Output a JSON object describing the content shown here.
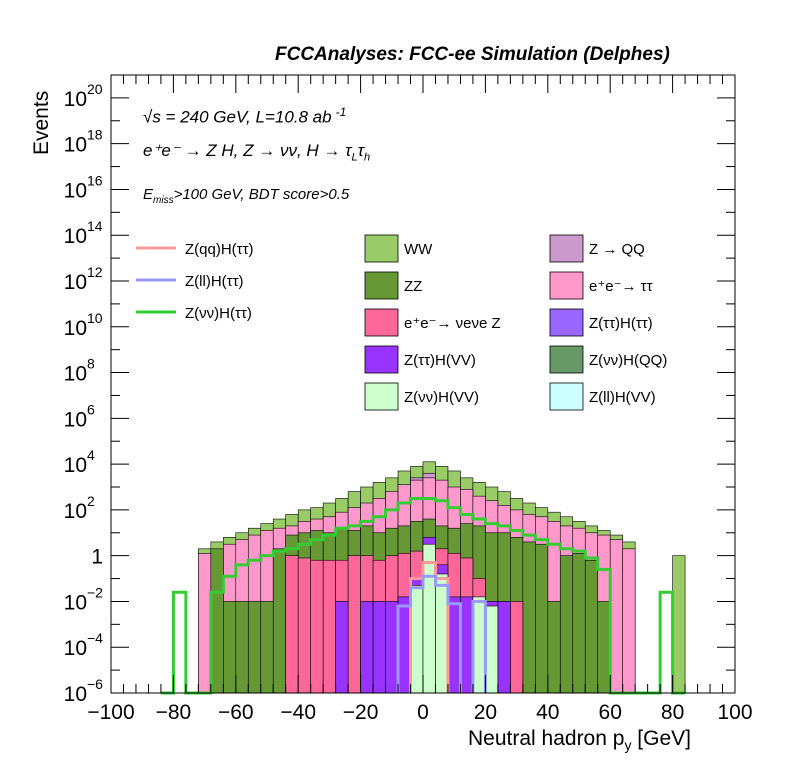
{
  "header": "FCCAnalyses: FCC-ee Simulation (Delphes)",
  "info": {
    "line1": "√s = 240 GeV, L=10.8 ab",
    "line1_exp": "-1",
    "line2": "e⁺e⁻ → Z H, Z → νν, H → τ",
    "line2_sub1": "L",
    "line2_mid": "τ",
    "line2_sub2": "h",
    "line3_pre": "E",
    "line3_sub": "miss",
    "line3_post": ">100 GeV, BDT score>0.5"
  },
  "chart_data": {
    "type": "histogram",
    "ylabel": "Events",
    "xlabel": "Neutral hadron p",
    "xlabel_sub": "y",
    "xlabel_unit": " [GeV]",
    "xlim": [
      -100,
      100
    ],
    "ylog": true,
    "ylim_log10": [
      -6,
      21
    ],
    "xticks": [
      -100,
      -80,
      -60,
      -40,
      -20,
      0,
      20,
      40,
      60,
      80,
      100
    ],
    "xtick_labels": [
      "−100",
      "−80",
      "−60",
      "−40",
      "−20",
      "0",
      "20",
      "40",
      "60",
      "80",
      "100"
    ],
    "yticks_exp": [
      -6,
      -4,
      -2,
      0,
      2,
      4,
      6,
      8,
      10,
      12,
      14,
      16,
      18,
      20
    ],
    "ytick_labels": [
      {
        "base": "10",
        "exp": "−6"
      },
      {
        "base": "10",
        "exp": "−4"
      },
      {
        "base": "10",
        "exp": "−2"
      },
      {
        "base": "1",
        "exp": ""
      },
      {
        "base": "10",
        "exp": "2"
      },
      {
        "base": "10",
        "exp": "4"
      },
      {
        "base": "10",
        "exp": "6"
      },
      {
        "base": "10",
        "exp": "8"
      },
      {
        "base": "10",
        "exp": "10"
      },
      {
        "base": "10",
        "exp": "12"
      },
      {
        "base": "10",
        "exp": "14"
      },
      {
        "base": "10",
        "exp": "16"
      },
      {
        "base": "10",
        "exp": "18"
      },
      {
        "base": "10",
        "exp": "20"
      }
    ],
    "bin_edges_range": [
      -100,
      100
    ],
    "bin_width": 4,
    "stack_note": "cumulative stacked totals, log10(events)",
    "stack_layers": [
      {
        "name": "Z(νν)H(VV)",
        "color": "#ccffcc",
        "bins": [
          {
            "x": -4,
            "v": -1.3
          },
          {
            "x": 0,
            "v": 0.5
          },
          {
            "x": 4,
            "v": -0.8
          },
          {
            "x": 16,
            "v": -1.8
          },
          {
            "x": 20,
            "v": -2.2
          }
        ]
      },
      {
        "name": "Z(ττ)H(VV)",
        "color": "#9933ff",
        "bins": [
          {
            "x": -28,
            "v": -2.0
          },
          {
            "x": -20,
            "v": -2.0
          },
          {
            "x": -16,
            "v": -2.0
          },
          {
            "x": -12,
            "v": -2.0
          },
          {
            "x": -8,
            "v": -1.8
          },
          {
            "x": -4,
            "v": -1.0
          },
          {
            "x": 0,
            "v": 0.8
          },
          {
            "x": 4,
            "v": -0.4
          },
          {
            "x": 8,
            "v": -1.8
          },
          {
            "x": 12,
            "v": -1.8
          },
          {
            "x": 16,
            "v": -1.9
          },
          {
            "x": 20,
            "v": -2.0
          },
          {
            "x": 24,
            "v": -2.0
          }
        ]
      },
      {
        "name": "e⁺e⁻→ νeνe Z",
        "color": "#ff6699",
        "bins": [
          {
            "x": -44,
            "v": 0.0
          },
          {
            "x": -40,
            "v": -0.1
          },
          {
            "x": -36,
            "v": -0.2
          },
          {
            "x": -32,
            "v": -0.2
          },
          {
            "x": -28,
            "v": -0.2
          },
          {
            "x": -24,
            "v": 0.0
          },
          {
            "x": -20,
            "v": 0.0
          },
          {
            "x": -16,
            "v": -0.2
          },
          {
            "x": -12,
            "v": 0.0
          },
          {
            "x": -8,
            "v": 0.1
          },
          {
            "x": -4,
            "v": 0.2
          },
          {
            "x": 0,
            "v": 0.6
          },
          {
            "x": 4,
            "v": 0.3
          },
          {
            "x": 8,
            "v": 0.1
          },
          {
            "x": 12,
            "v": -0.1
          },
          {
            "x": 16,
            "v": -1.0
          },
          {
            "x": 20,
            "v": -2.0
          },
          {
            "x": 24,
            "v": -2.0
          },
          {
            "x": 28,
            "v": -2.0
          }
        ]
      },
      {
        "name": "ZZ",
        "color": "#669933",
        "bins": [
          {
            "x": -72,
            "v": -6
          },
          {
            "x": -68,
            "v": 0.3
          },
          {
            "x": -64,
            "v": -2.0
          },
          {
            "x": -60,
            "v": -2.0
          },
          {
            "x": -56,
            "v": -2.0
          },
          {
            "x": -52,
            "v": -2.0
          },
          {
            "x": -48,
            "v": 0.3
          },
          {
            "x": -44,
            "v": 0.9
          },
          {
            "x": -40,
            "v": 1.0
          },
          {
            "x": -36,
            "v": 1.1
          },
          {
            "x": -32,
            "v": 1.0
          },
          {
            "x": -28,
            "v": 1.2
          },
          {
            "x": -24,
            "v": 1.1
          },
          {
            "x": -20,
            "v": 1.3
          },
          {
            "x": -16,
            "v": 1.0
          },
          {
            "x": -12,
            "v": 1.2
          },
          {
            "x": -8,
            "v": 1.3
          },
          {
            "x": -4,
            "v": 1.5
          },
          {
            "x": 0,
            "v": 1.6
          },
          {
            "x": 4,
            "v": 1.3
          },
          {
            "x": 8,
            "v": 1.2
          },
          {
            "x": 12,
            "v": 1.4
          },
          {
            "x": 16,
            "v": 1.3
          },
          {
            "x": 20,
            "v": 1.0
          },
          {
            "x": 24,
            "v": 1.0
          },
          {
            "x": 28,
            "v": 0.8
          },
          {
            "x": 32,
            "v": 0.6
          },
          {
            "x": 36,
            "v": 0.5
          },
          {
            "x": 40,
            "v": -2.0
          },
          {
            "x": 44,
            "v": 0.0
          },
          {
            "x": 48,
            "v": 0.1
          },
          {
            "x": 52,
            "v": -0.2
          },
          {
            "x": 56,
            "v": -2.0
          }
        ]
      },
      {
        "name": "e⁺e⁻→ ττ",
        "color": "#ff99cc",
        "bins": [
          {
            "x": -72,
            "v": 0.1
          },
          {
            "x": -68,
            "v": 0.3
          },
          {
            "x": -64,
            "v": 0.5
          },
          {
            "x": -60,
            "v": 0.7
          },
          {
            "x": -56,
            "v": 0.9
          },
          {
            "x": -52,
            "v": 1.1
          },
          {
            "x": -48,
            "v": 1.2
          },
          {
            "x": -44,
            "v": 1.3
          },
          {
            "x": -40,
            "v": 1.5
          },
          {
            "x": -36,
            "v": 1.6
          },
          {
            "x": -32,
            "v": 1.7
          },
          {
            "x": -28,
            "v": 1.9
          },
          {
            "x": -24,
            "v": 2.1
          },
          {
            "x": -20,
            "v": 2.3
          },
          {
            "x": -16,
            "v": 2.5
          },
          {
            "x": -12,
            "v": 2.8
          },
          {
            "x": -8,
            "v": 3.1
          },
          {
            "x": -4,
            "v": 3.3
          },
          {
            "x": 0,
            "v": 3.4
          },
          {
            "x": 4,
            "v": 3.3
          },
          {
            "x": 8,
            "v": 3.0
          },
          {
            "x": 12,
            "v": 2.9
          },
          {
            "x": 16,
            "v": 2.6
          },
          {
            "x": 20,
            "v": 2.4
          },
          {
            "x": 24,
            "v": 2.2
          },
          {
            "x": 28,
            "v": 2.0
          },
          {
            "x": 32,
            "v": 1.8
          },
          {
            "x": 36,
            "v": 1.7
          },
          {
            "x": 40,
            "v": 1.5
          },
          {
            "x": 44,
            "v": 1.3
          },
          {
            "x": 48,
            "v": 1.2
          },
          {
            "x": 52,
            "v": 1.0
          },
          {
            "x": 56,
            "v": 0.9
          },
          {
            "x": 60,
            "v": 0.7
          },
          {
            "x": 64,
            "v": 0.3
          },
          {
            "x": 68,
            "v": -6
          }
        ]
      },
      {
        "name": "Z → QQ",
        "color": "#cc99cc",
        "bins": [
          {
            "x": -4,
            "v": 3.4
          },
          {
            "x": 0,
            "v": 3.6
          }
        ]
      },
      {
        "name": "WW",
        "color": "#99cc66",
        "bins": [
          {
            "x": -72,
            "v": 0.3
          },
          {
            "x": -68,
            "v": 0.6
          },
          {
            "x": -64,
            "v": 0.8
          },
          {
            "x": -60,
            "v": 1.0
          },
          {
            "x": -56,
            "v": 1.2
          },
          {
            "x": -52,
            "v": 1.4
          },
          {
            "x": -48,
            "v": 1.6
          },
          {
            "x": -44,
            "v": 1.8
          },
          {
            "x": -40,
            "v": 2.0
          },
          {
            "x": -36,
            "v": 2.1
          },
          {
            "x": -32,
            "v": 2.3
          },
          {
            "x": -28,
            "v": 2.5
          },
          {
            "x": -24,
            "v": 2.8
          },
          {
            "x": -20,
            "v": 3.0
          },
          {
            "x": -16,
            "v": 3.2
          },
          {
            "x": -12,
            "v": 3.4
          },
          {
            "x": -8,
            "v": 3.7
          },
          {
            "x": -4,
            "v": 3.9
          },
          {
            "x": 0,
            "v": 4.1
          },
          {
            "x": 4,
            "v": 3.9
          },
          {
            "x": 8,
            "v": 3.7
          },
          {
            "x": 12,
            "v": 3.4
          },
          {
            "x": 16,
            "v": 3.2
          },
          {
            "x": 20,
            "v": 3.0
          },
          {
            "x": 24,
            "v": 2.8
          },
          {
            "x": 28,
            "v": 2.5
          },
          {
            "x": 32,
            "v": 2.3
          },
          {
            "x": 36,
            "v": 2.1
          },
          {
            "x": 40,
            "v": 1.9
          },
          {
            "x": 44,
            "v": 1.7
          },
          {
            "x": 48,
            "v": 1.5
          },
          {
            "x": 52,
            "v": 1.3
          },
          {
            "x": 56,
            "v": 1.1
          },
          {
            "x": 60,
            "v": 0.9
          },
          {
            "x": 64,
            "v": 0.6
          },
          {
            "x": 68,
            "v": -6
          },
          {
            "x": 72,
            "v": -6
          },
          {
            "x": 76,
            "v": -6
          },
          {
            "x": 80,
            "v": 0.0
          }
        ]
      }
    ],
    "stack_extra_lowbins": [
      {
        "x": -72,
        "color": "#99cc66",
        "v": 0.0
      },
      {
        "x": 80,
        "color": "#99cc66",
        "v": 0.0
      }
    ],
    "line_series": [
      {
        "name": "Z(qq)H(ττ)",
        "color": "#ff9999",
        "bins": [
          {
            "x": -4,
            "v": -1.0
          },
          {
            "x": 0,
            "v": -0.3
          },
          {
            "x": 4,
            "v": -1.0
          }
        ]
      },
      {
        "name": "Z(ll)H(ττ)",
        "color": "#9999ff",
        "bins": [
          {
            "x": -8,
            "v": -2.2
          },
          {
            "x": -4,
            "v": -1.4
          },
          {
            "x": 0,
            "v": -0.9
          },
          {
            "x": 4,
            "v": -1.3
          },
          {
            "x": 8,
            "v": -2.1
          },
          {
            "x": 16,
            "v": -2.0
          }
        ]
      },
      {
        "name": "Z(νν)H(ττ)",
        "color": "#33cc33",
        "bins": [
          {
            "x": -84,
            "v": -6
          },
          {
            "x": -80,
            "v": -1.6
          },
          {
            "x": -76,
            "v": -6
          },
          {
            "x": -72,
            "v": -6
          },
          {
            "x": -68,
            "v": -1.6
          },
          {
            "x": -64,
            "v": -0.9
          },
          {
            "x": -60,
            "v": -0.4
          },
          {
            "x": -56,
            "v": -0.2
          },
          {
            "x": -52,
            "v": 0.0
          },
          {
            "x": -48,
            "v": 0.2
          },
          {
            "x": -44,
            "v": 0.3
          },
          {
            "x": -40,
            "v": 0.5
          },
          {
            "x": -36,
            "v": 0.7
          },
          {
            "x": -32,
            "v": 0.9
          },
          {
            "x": -28,
            "v": 1.2
          },
          {
            "x": -24,
            "v": 1.3
          },
          {
            "x": -20,
            "v": 1.5
          },
          {
            "x": -16,
            "v": 1.7
          },
          {
            "x": -12,
            "v": 2.0
          },
          {
            "x": -8,
            "v": 2.3
          },
          {
            "x": -4,
            "v": 2.5
          },
          {
            "x": 0,
            "v": 2.5
          },
          {
            "x": 4,
            "v": 2.4
          },
          {
            "x": 8,
            "v": 2.1
          },
          {
            "x": 12,
            "v": 1.8
          },
          {
            "x": 16,
            "v": 1.6
          },
          {
            "x": 20,
            "v": 1.4
          },
          {
            "x": 24,
            "v": 1.3
          },
          {
            "x": 28,
            "v": 1.1
          },
          {
            "x": 32,
            "v": 0.9
          },
          {
            "x": 36,
            "v": 0.7
          },
          {
            "x": 40,
            "v": 0.5
          },
          {
            "x": 44,
            "v": 0.3
          },
          {
            "x": 48,
            "v": 0.2
          },
          {
            "x": 52,
            "v": -0.1
          },
          {
            "x": 56,
            "v": -0.6
          },
          {
            "x": 60,
            "v": -6
          },
          {
            "x": 64,
            "v": -6
          },
          {
            "x": 68,
            "v": -6
          },
          {
            "x": 72,
            "v": -6
          },
          {
            "x": 76,
            "v": -1.6
          },
          {
            "x": 80,
            "v": -6
          }
        ]
      }
    ],
    "legend_lines": [
      {
        "label": "Z(qq)H(ττ)",
        "color": "#ff9999"
      },
      {
        "label": "Z(ll)H(ττ)",
        "color": "#9999ff"
      },
      {
        "label": "Z(νν)H(ττ)",
        "color": "#33cc33"
      }
    ],
    "legend_boxes_col1": [
      {
        "label": "WW",
        "color": "#99cc66"
      },
      {
        "label": "ZZ",
        "color": "#669933"
      },
      {
        "label": "e⁺e⁻→ νeνe Z",
        "color": "#ff6699"
      },
      {
        "label": "Z(ττ)H(VV)",
        "color": "#9933ff"
      },
      {
        "label": "Z(νν)H(VV)",
        "color": "#ccffcc"
      }
    ],
    "legend_boxes_col2": [
      {
        "label": "Z → QQ",
        "color": "#cc99cc"
      },
      {
        "label": "e⁺e⁻→ ττ",
        "color": "#ff99cc"
      },
      {
        "label": "Z(ττ)H(ττ)",
        "color": "#9966ff"
      },
      {
        "label": "Z(νν)H(QQ)",
        "color": "#669966"
      },
      {
        "label": "Z(ll)H(VV)",
        "color": "#ccffff"
      }
    ]
  }
}
